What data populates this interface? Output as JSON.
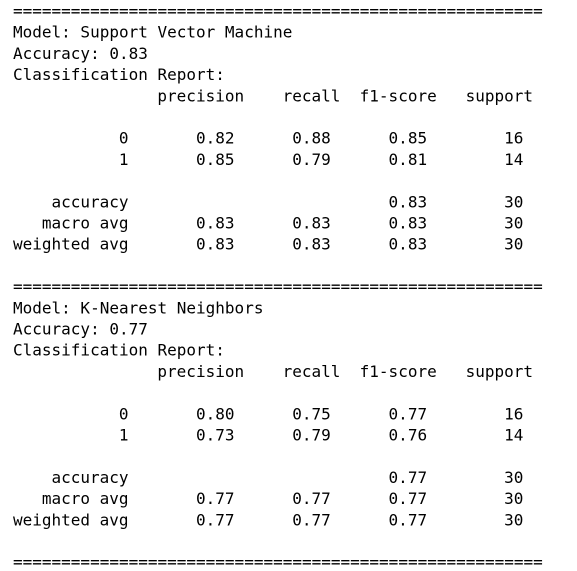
{
  "sections": [
    {
      "separator": "=======================================================",
      "model": "Model: Support Vector Machine",
      "accuracy": "Accuracy: 0.83",
      "report_title": "Classification Report:",
      "header": [
        "precision",
        "recall",
        "f1-score",
        "support"
      ],
      "rows": [
        {
          "label": "0",
          "cells": [
            "0.82",
            "0.88",
            "0.85",
            "16"
          ]
        },
        {
          "label": "1",
          "cells": [
            "0.85",
            "0.79",
            "0.81",
            "14"
          ]
        },
        {
          "label": "accuracy",
          "cells": [
            null,
            null,
            "0.83",
            "30"
          ]
        },
        {
          "label": "macro avg",
          "cells": [
            "0.83",
            "0.83",
            "0.83",
            "30"
          ]
        },
        {
          "label": "weighted avg",
          "cells": [
            "0.83",
            "0.83",
            "0.83",
            "30"
          ]
        }
      ]
    },
    {
      "separator": "=======================================================",
      "model": "Model: K-Nearest Neighbors",
      "accuracy": "Accuracy: 0.77",
      "report_title": "Classification Report:",
      "header": [
        "precision",
        "recall",
        "f1-score",
        "support"
      ],
      "rows": [
        {
          "label": "0",
          "cells": [
            "0.80",
            "0.75",
            "0.77",
            "16"
          ]
        },
        {
          "label": "1",
          "cells": [
            "0.73",
            "0.79",
            "0.76",
            "14"
          ]
        },
        {
          "label": "accuracy",
          "cells": [
            null,
            null,
            "0.77",
            "30"
          ]
        },
        {
          "label": "macro avg",
          "cells": [
            "0.77",
            "0.77",
            "0.77",
            "30"
          ]
        },
        {
          "label": "weighted avg",
          "cells": [
            "0.77",
            "0.77",
            "0.77",
            "30"
          ]
        }
      ]
    }
  ],
  "final_separator": "======================================================="
}
